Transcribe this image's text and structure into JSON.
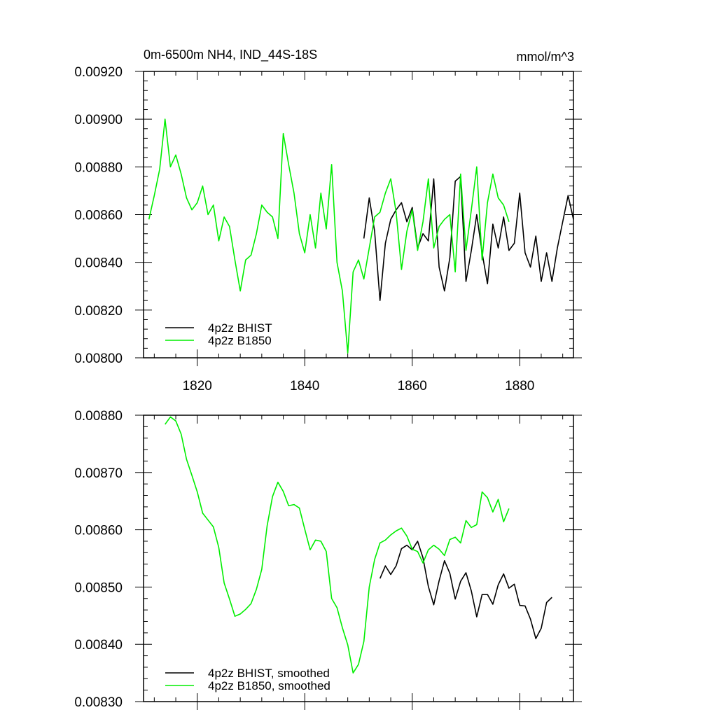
{
  "chart_data": [
    {
      "type": "line",
      "title": "0m-6500m NH4, IND_44S-18S",
      "units": "mmol/m^3",
      "xlim": [
        1810,
        1890
      ],
      "ylim": [
        0.008,
        0.0092
      ],
      "x_ticks": [
        1820,
        1840,
        1860,
        1880
      ],
      "y_ticks": [
        "0.00800",
        "0.00820",
        "0.00840",
        "0.00860",
        "0.00880",
        "0.00900",
        "0.00920"
      ],
      "legend_position": "bottom-left",
      "series": [
        {
          "name": "4p2z BHIST",
          "color": "#000000",
          "x_start": 1851,
          "values": [
            0.0085,
            0.00867,
            0.00853,
            0.00824,
            0.00848,
            0.00858,
            0.00862,
            0.00865,
            0.00857,
            0.00863,
            0.00846,
            0.00852,
            0.00849,
            0.00875,
            0.00838,
            0.00828,
            0.00842,
            0.00874,
            0.00876,
            0.00832,
            0.00845,
            0.0086,
            0.00844,
            0.00831,
            0.00856,
            0.00846,
            0.00859,
            0.00845,
            0.00848,
            0.00869,
            0.00844,
            0.00838,
            0.00851,
            0.00832,
            0.00844,
            0.00832,
            0.00846,
            0.00857,
            0.00868,
            0.00858
          ]
        },
        {
          "name": "4p2z B1850",
          "color": "#00ee00",
          "x_start": 1811,
          "values": [
            0.00858,
            0.00868,
            0.00879,
            0.009,
            0.0088,
            0.00885,
            0.00877,
            0.00867,
            0.00862,
            0.00865,
            0.00872,
            0.0086,
            0.00864,
            0.00849,
            0.00859,
            0.00855,
            0.00841,
            0.00828,
            0.00841,
            0.00843,
            0.00852,
            0.00864,
            0.00861,
            0.00859,
            0.0085,
            0.00894,
            0.00881,
            0.00869,
            0.00852,
            0.00844,
            0.0086,
            0.00846,
            0.00869,
            0.00854,
            0.00881,
            0.0084,
            0.00828,
            0.00802,
            0.00836,
            0.00841,
            0.00833,
            0.00846,
            0.00859,
            0.00861,
            0.00869,
            0.00875,
            0.00861,
            0.00837,
            0.00853,
            0.00862,
            0.00845,
            0.00857,
            0.00875,
            0.00846,
            0.00855,
            0.00858,
            0.0086,
            0.00836,
            0.00877,
            0.00845,
            0.00862,
            0.0088,
            0.00841,
            0.00865,
            0.00877,
            0.00867,
            0.00864,
            0.00857
          ]
        }
      ]
    },
    {
      "type": "line",
      "xlim": [
        1810,
        1890
      ],
      "ylim": [
        0.0083,
        0.0088
      ],
      "x_ticks": [
        1820,
        1840,
        1860,
        1880
      ],
      "y_ticks": [
        "0.00830",
        "0.00840",
        "0.00850",
        "0.00860",
        "0.00870",
        "0.00880"
      ],
      "legend_position": "bottom-left",
      "series": [
        {
          "name": "4p2z BHIST, smoothed",
          "color": "#000000",
          "x_start": 1854,
          "values": [
            0.008515,
            0.008537,
            0.008522,
            0.008537,
            0.008567,
            0.008573,
            0.008565,
            0.00858,
            0.008551,
            0.008501,
            0.008469,
            0.008511,
            0.008546,
            0.008524,
            0.008479,
            0.00851,
            0.008525,
            0.008493,
            0.008448,
            0.008487,
            0.008487,
            0.00847,
            0.008504,
            0.008523,
            0.008498,
            0.008505,
            0.008468,
            0.008467,
            0.008444,
            0.00841,
            0.008428,
            0.008473,
            0.008482
          ]
        },
        {
          "name": "4p2z B1850, smoothed",
          "color": "#00ee00",
          "x_start": 1814,
          "values": [
            0.008784,
            0.008797,
            0.00879,
            0.008767,
            0.008723,
            0.008695,
            0.008666,
            0.008629,
            0.008617,
            0.008605,
            0.008569,
            0.008507,
            0.008479,
            0.008449,
            0.008453,
            0.008461,
            0.008471,
            0.008496,
            0.008531,
            0.008607,
            0.008658,
            0.008683,
            0.008667,
            0.008642,
            0.008644,
            0.008638,
            0.008601,
            0.008565,
            0.008582,
            0.00858,
            0.008562,
            0.00848,
            0.008464,
            0.008429,
            0.008399,
            0.00835,
            0.008365,
            0.008405,
            0.0085,
            0.008548,
            0.008577,
            0.008582,
            0.008591,
            0.008598,
            0.008603,
            0.008589,
            0.008566,
            0.008562,
            0.008542,
            0.008565,
            0.008573,
            0.008566,
            0.008555,
            0.008583,
            0.008587,
            0.008577,
            0.008616,
            0.008604,
            0.008609,
            0.008666,
            0.008656,
            0.008631,
            0.008653,
            0.008614,
            0.008637
          ]
        }
      ]
    }
  ]
}
